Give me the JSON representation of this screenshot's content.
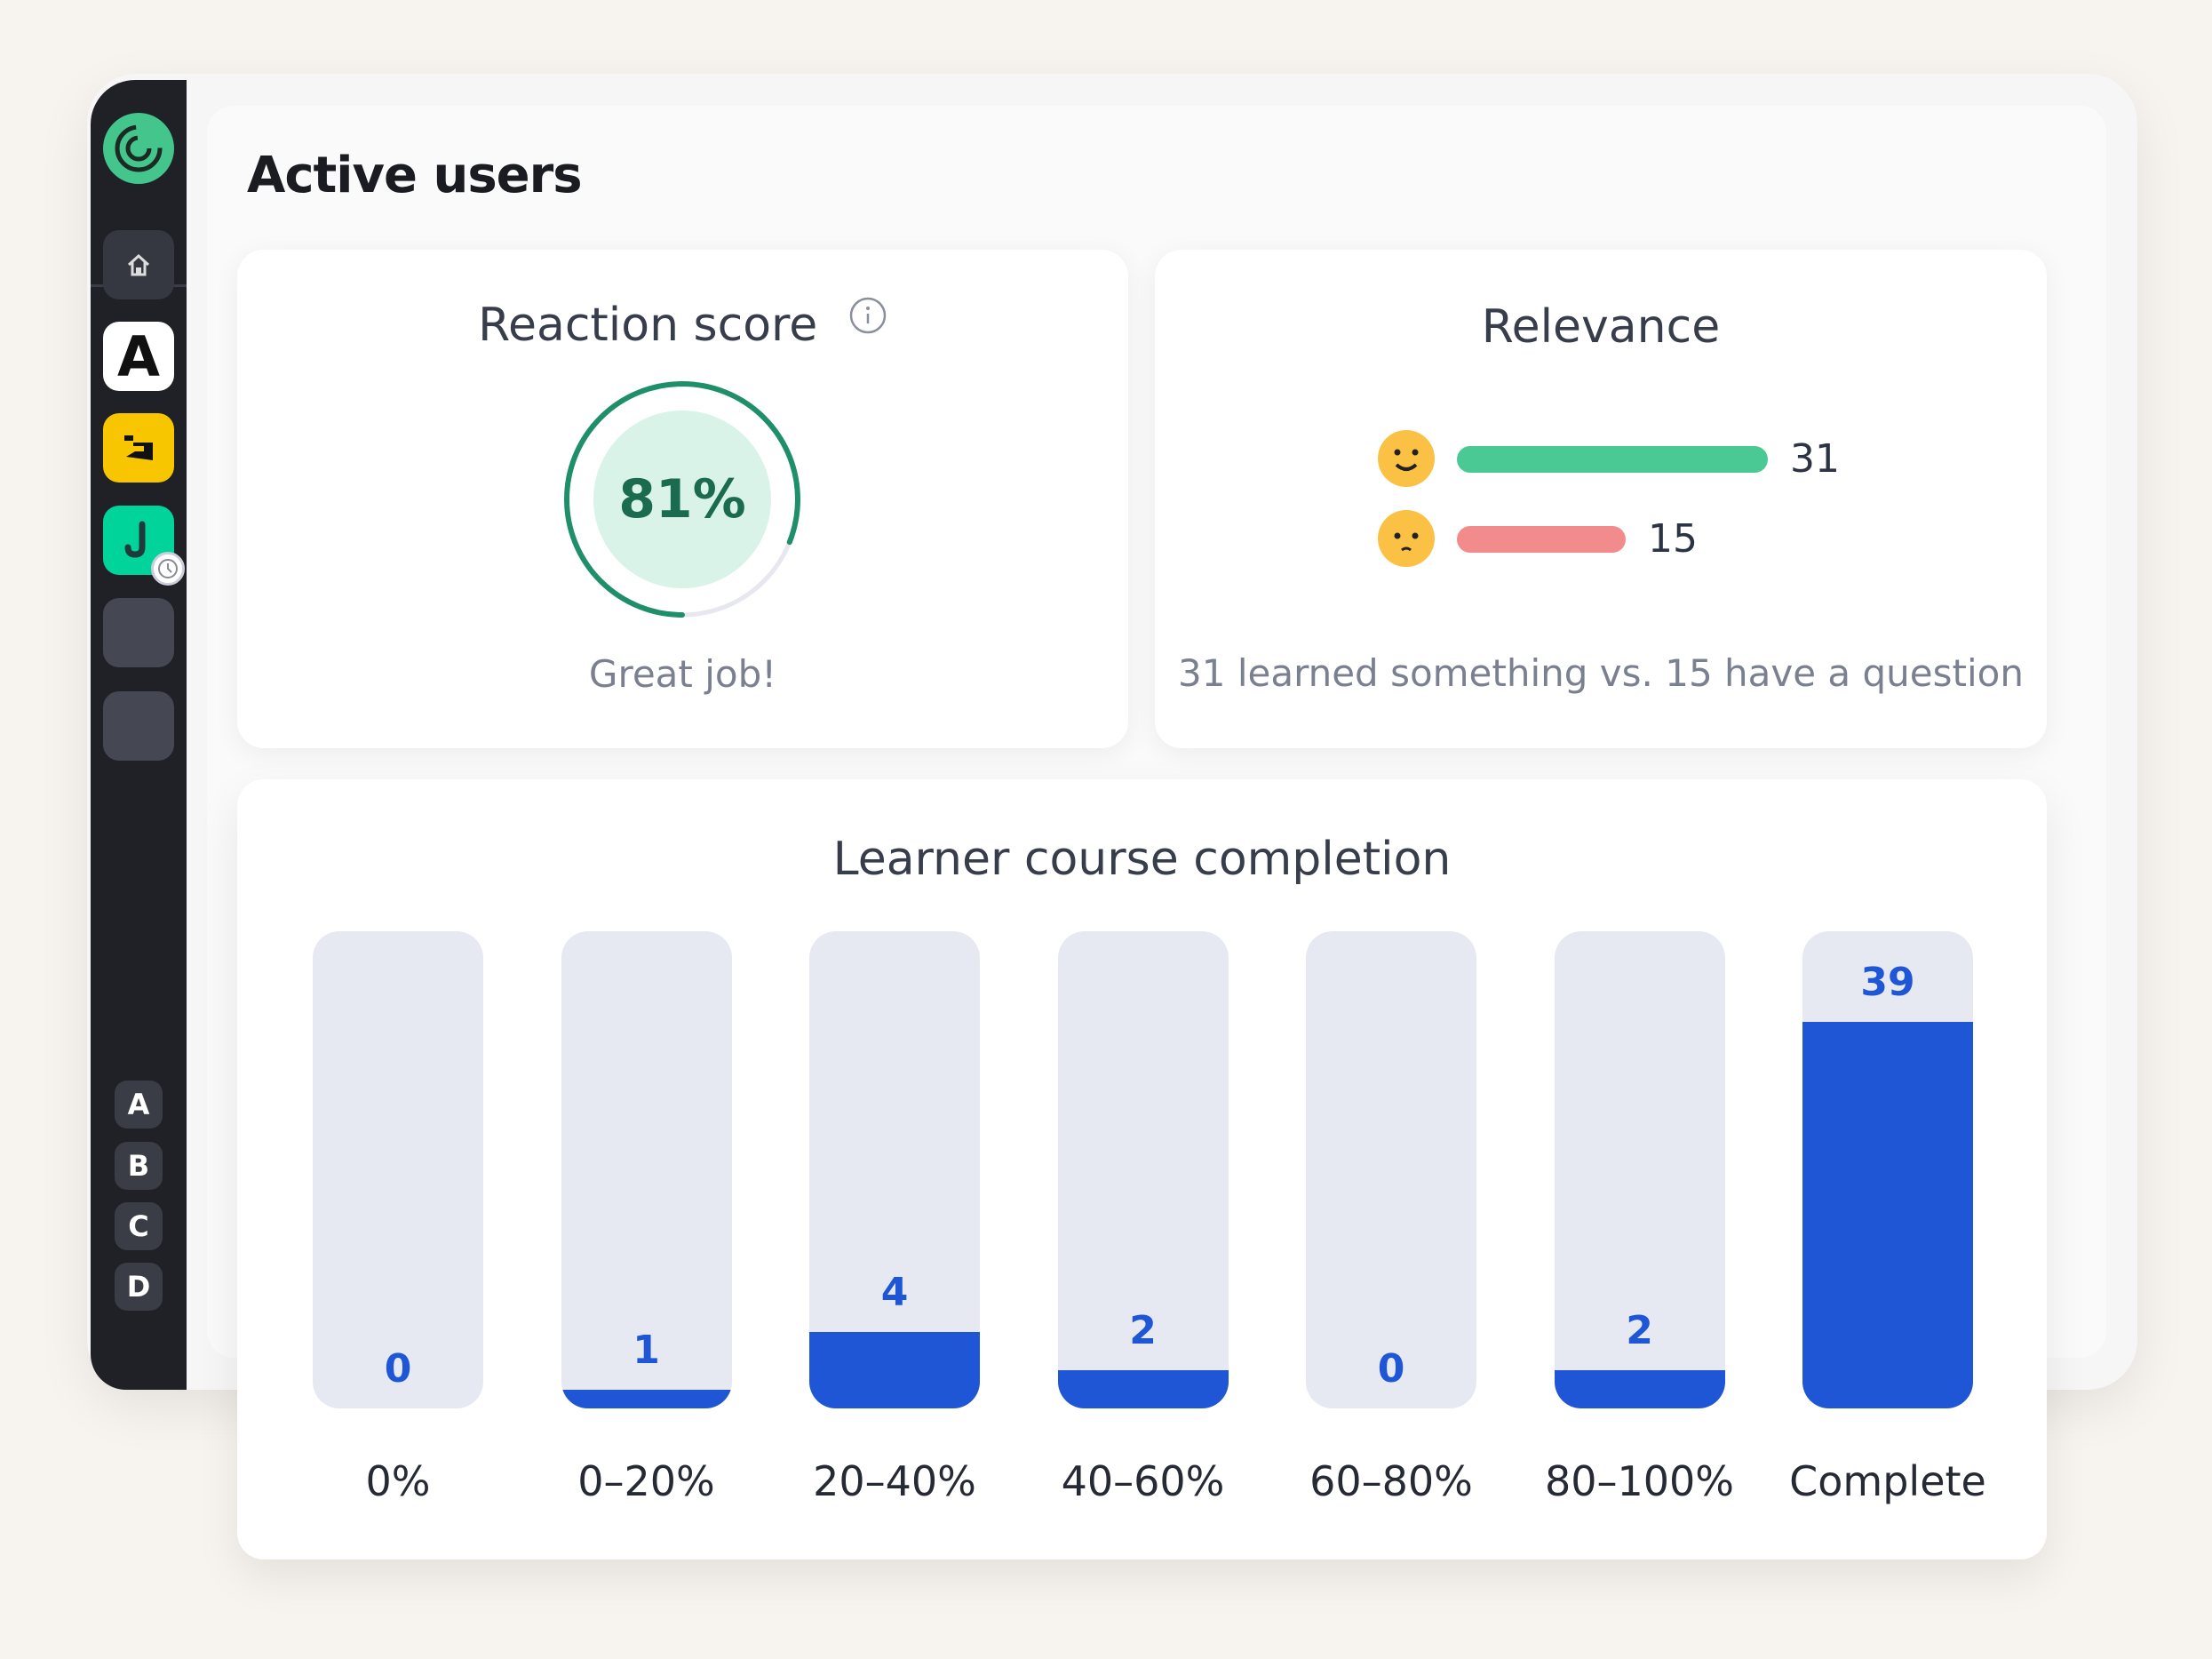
{
  "sidebar": {
    "logo": "logo-icon",
    "items": [
      {
        "icon": "home-icon"
      },
      {
        "label": "A",
        "color": "#ffffff"
      },
      {
        "icon": "app-yellow-icon",
        "color": "#f7c600"
      },
      {
        "icon": "app-green-icon",
        "color": "#00d49a"
      },
      {
        "icon": "placeholder"
      },
      {
        "icon": "placeholder"
      }
    ],
    "letters": [
      "A",
      "B",
      "C",
      "D"
    ]
  },
  "header": {
    "title": "Active users"
  },
  "reaction": {
    "title": "Reaction score",
    "value_label": "81%",
    "value": 81,
    "caption": "Great job!",
    "color": "#1f8f6a"
  },
  "relevance": {
    "title": "Relevance",
    "positive": 31,
    "negative": 15,
    "positive_color": "#4bc994",
    "negative_color": "#f28b8b",
    "caption": "31 learned something vs. 15 have a question"
  },
  "chart_data": {
    "type": "bar",
    "title": "Learner course completion",
    "categories": [
      "0%",
      "0–20%",
      "20–40%",
      "40–60%",
      "60–80%",
      "80–100%",
      "Complete"
    ],
    "values": [
      0,
      1,
      4,
      2,
      0,
      2,
      39
    ],
    "bar_color": "#1f56d6",
    "track_color": "#e6e9f1"
  }
}
